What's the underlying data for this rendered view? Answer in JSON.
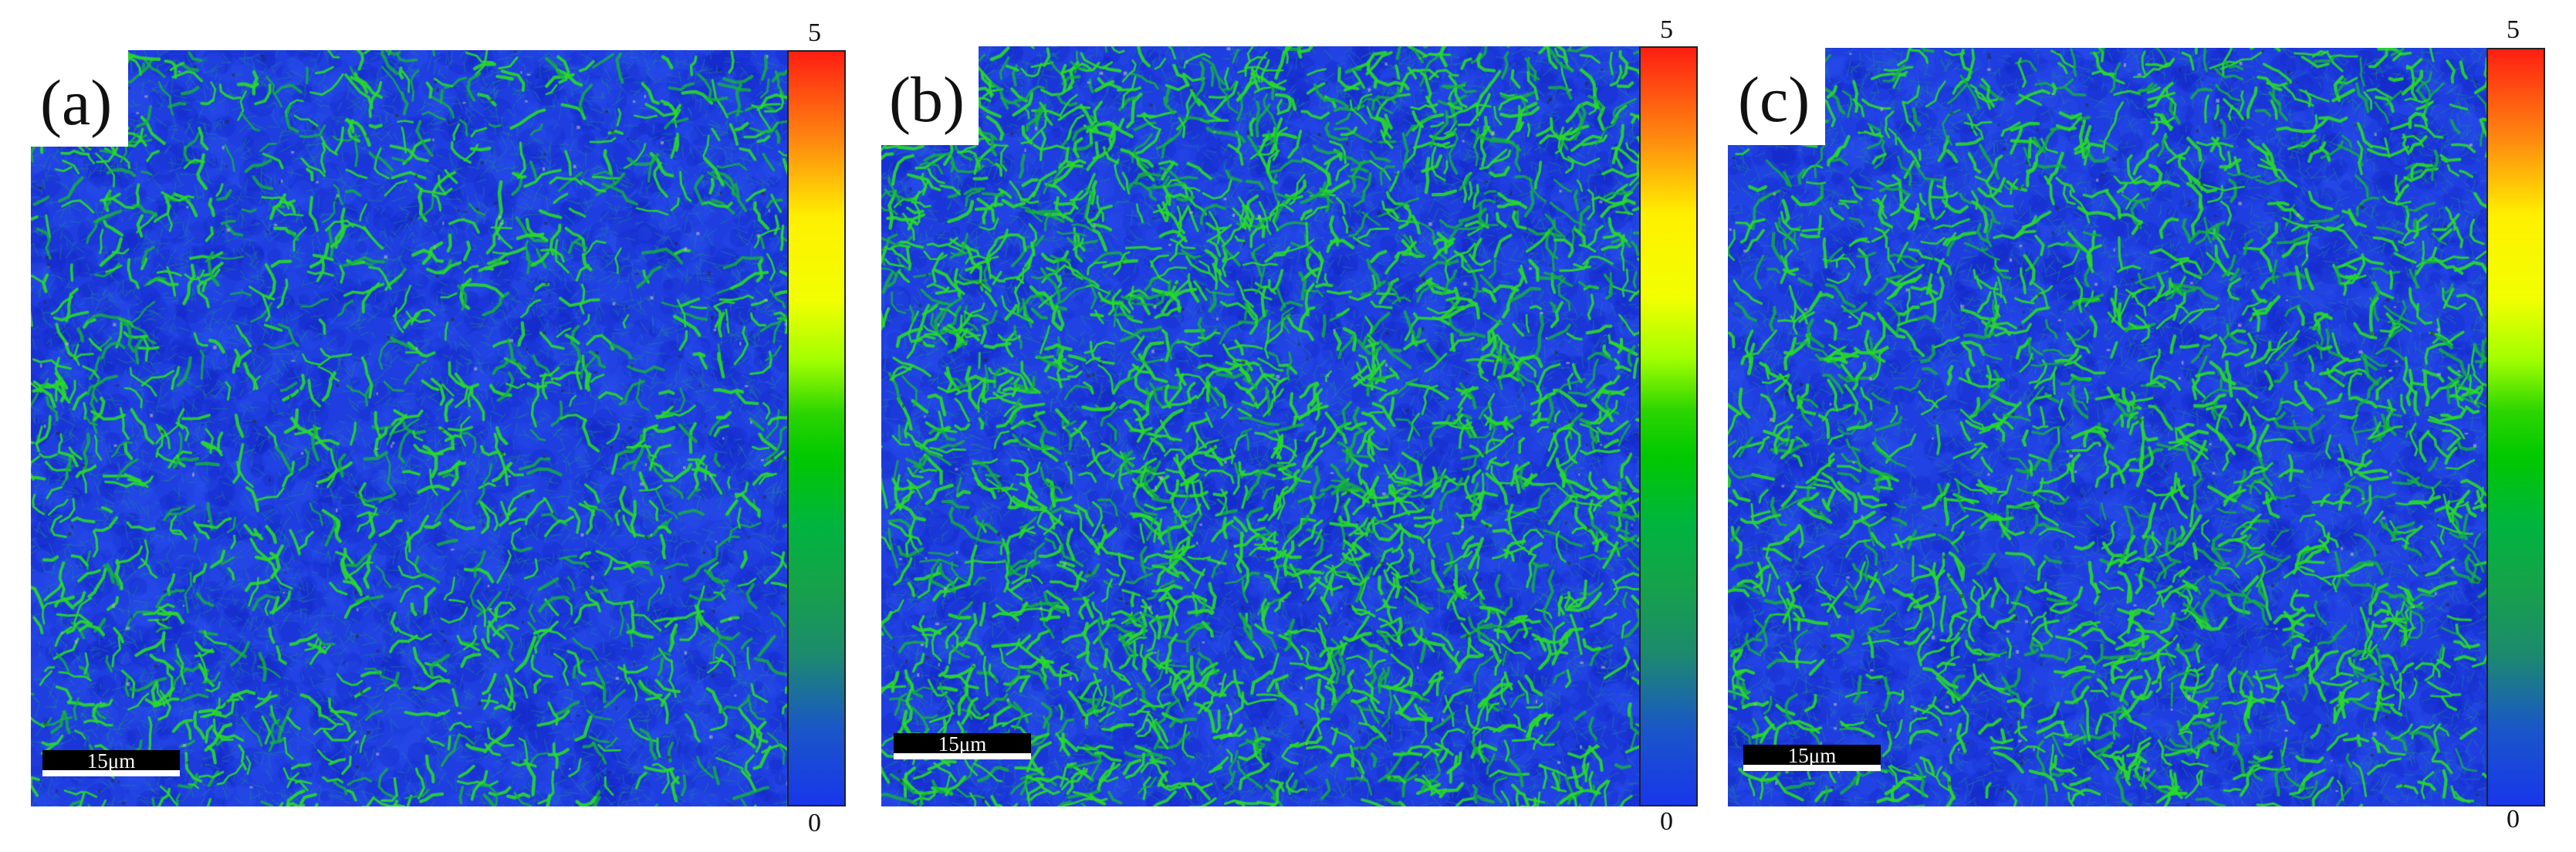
{
  "panels": [
    {
      "id": "a",
      "label": "(a)",
      "scale_text": "15μm",
      "colorbar_max": "5",
      "colorbar_min": "0",
      "green_density": 0.55
    },
    {
      "id": "b",
      "label": "(b)",
      "scale_text": "15μm",
      "colorbar_max": "5",
      "colorbar_min": "0",
      "green_density": 1.0
    },
    {
      "id": "c",
      "label": "(c)",
      "scale_text": "15μm",
      "colorbar_max": "5",
      "colorbar_min": "0",
      "green_density": 0.75
    }
  ],
  "colors": {
    "map_base": "#1f3ee0",
    "grain_boundary": "#22d62a",
    "colorbar_top": "#ff1e12",
    "colorbar_bottom": "#1836ec"
  }
}
